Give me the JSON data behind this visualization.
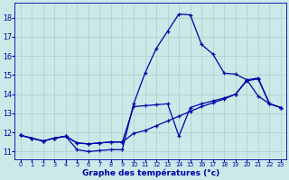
{
  "title": "Graphe des températures (°c)",
  "bg_color": "#cce8e8",
  "grid_color": "#aacece",
  "line_color": "#0000aa",
  "xlim": [
    -0.5,
    23.5
  ],
  "ylim": [
    10.6,
    18.8
  ],
  "xticks": [
    0,
    1,
    2,
    3,
    4,
    5,
    6,
    7,
    8,
    9,
    10,
    11,
    12,
    13,
    14,
    15,
    16,
    17,
    18,
    19,
    20,
    21,
    22,
    23
  ],
  "yticks": [
    11,
    12,
    13,
    14,
    15,
    16,
    17,
    18
  ],
  "series1": [
    11.85,
    11.7,
    11.55,
    11.7,
    11.8,
    11.1,
    11.0,
    11.05,
    11.1,
    11.1,
    13.5,
    15.1,
    16.4,
    17.3,
    18.2,
    18.15,
    16.6,
    16.1,
    15.1,
    15.05,
    14.75,
    13.9,
    13.5,
    13.3
  ],
  "series2": [
    11.85,
    11.7,
    11.55,
    11.7,
    11.8,
    11.45,
    11.4,
    11.45,
    11.5,
    11.5,
    13.35,
    13.4,
    13.45,
    13.5,
    11.8,
    13.3,
    13.5,
    13.65,
    13.8,
    14.0,
    14.75,
    14.85,
    13.5,
    13.3
  ],
  "series3": [
    11.85,
    11.7,
    11.55,
    11.7,
    11.8,
    11.45,
    11.4,
    11.45,
    11.5,
    11.5,
    11.95,
    12.1,
    12.35,
    12.6,
    12.85,
    13.1,
    13.35,
    13.55,
    13.75,
    14.0,
    14.7,
    14.8,
    13.5,
    13.3
  ],
  "lw": 0.9,
  "ms": 3.0,
  "mew": 0.9
}
